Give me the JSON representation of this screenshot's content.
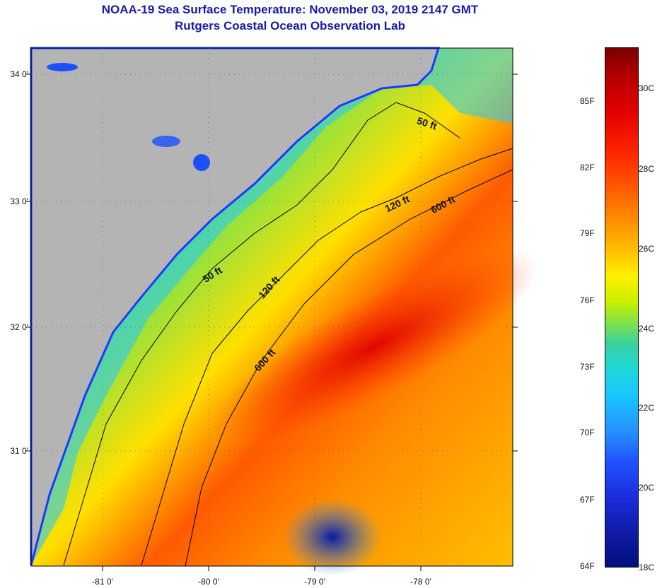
{
  "header": {
    "title": "NOAA-19 Sea Surface Temperature:  November 03, 2019 2147 GMT",
    "subtitle": "Rutgers Coastal Ocean Observation Lab"
  },
  "map": {
    "latitude_labels": [
      "34 0'",
      "33 0'",
      "32 0'",
      "31 0'"
    ],
    "longitude_labels": [
      "-81 0'",
      "-80 0'",
      "-79 0'",
      "-78 0'"
    ],
    "depth_contours": [
      {
        "label": "50 ft"
      },
      {
        "label": "50 ft"
      },
      {
        "label": "120 ft"
      },
      {
        "label": "120 ft"
      },
      {
        "label": "600 ft"
      },
      {
        "label": "600 ft"
      }
    ],
    "land_color": "#b4b4b4"
  },
  "colorbar": {
    "fahrenheit": [
      "85F",
      "82F",
      "79F",
      "76F",
      "73F",
      "70F",
      "67F",
      "64F"
    ],
    "celsius": [
      "30C",
      "28C",
      "26C",
      "24C",
      "22C",
      "20C",
      "18C"
    ]
  }
}
